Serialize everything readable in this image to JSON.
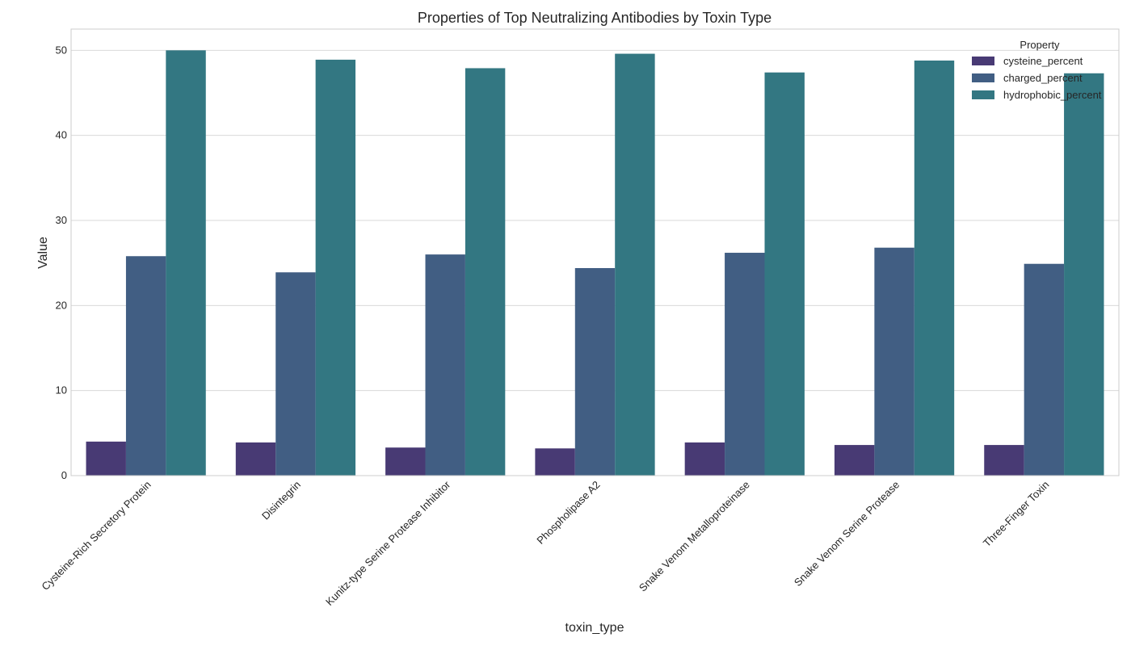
{
  "chart_data": {
    "type": "bar",
    "title": "Properties of Top Neutralizing Antibodies by Toxin Type",
    "xlabel": "toxin_type",
    "ylabel": "Value",
    "ylim": [
      0,
      52.5
    ],
    "yticks": [
      0,
      10,
      20,
      30,
      40,
      50
    ],
    "grid": true,
    "legend_title": "Property",
    "legend_position": "top-right",
    "categories": [
      "Cysteine-Rich Secretory Protein",
      "Disintegrin",
      "Kunitz-type Serine Protease Inhibitor",
      "Phospholipase A2",
      "Snake Venom Metalloproteinase",
      "Snake Venom Serine Protease",
      "Three-Finger Toxin"
    ],
    "series": [
      {
        "name": "cysteine_percent",
        "color": "#483a74",
        "values": [
          4.0,
          3.9,
          3.3,
          3.2,
          3.9,
          3.6,
          3.6
        ]
      },
      {
        "name": "charged_percent",
        "color": "#415e83",
        "values": [
          25.8,
          23.9,
          26.0,
          24.4,
          26.2,
          26.8,
          24.9
        ]
      },
      {
        "name": "hydrophobic_percent",
        "color": "#337782",
        "values": [
          50.0,
          48.9,
          47.9,
          49.6,
          47.4,
          48.8,
          47.3
        ]
      }
    ]
  }
}
